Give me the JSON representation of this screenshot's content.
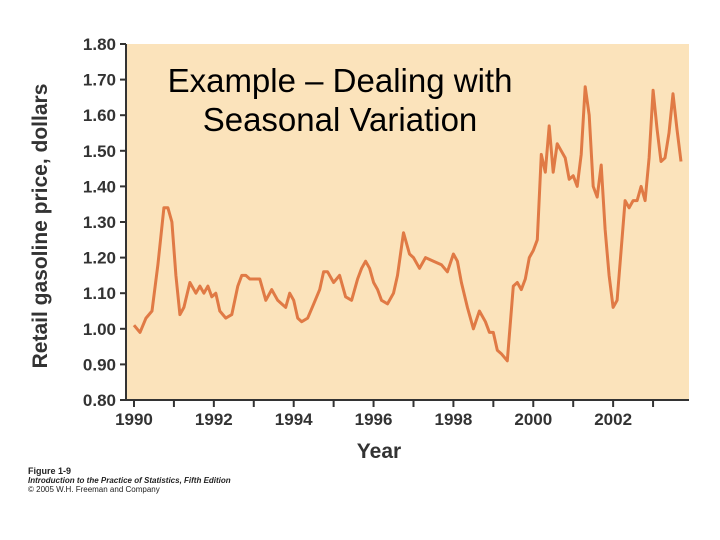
{
  "slide": {
    "title_line1": "Example – Dealing with",
    "title_line2": "Seasonal Variation"
  },
  "caption": {
    "figure": "Figure 1-9",
    "book": "Introduction to the Practice of Statistics, Fifth Edition",
    "copyright": "© 2005 W.H. Freeman and Company"
  },
  "colors": {
    "plot_background": "#fbe3bb",
    "line": "#e07a45",
    "axis": "#333333"
  },
  "chart_data": {
    "type": "line",
    "title": "",
    "xlabel": "Year",
    "ylabel": "Retail gasoline price, dollars",
    "xlim": [
      1989.8,
      2003.9
    ],
    "ylim": [
      0.8,
      1.8
    ],
    "x_ticks": [
      1990,
      1992,
      1994,
      1996,
      1998,
      2000,
      2002
    ],
    "x_tick_labels": [
      "1990",
      "1992",
      "1994",
      "1996",
      "1998",
      "2000",
      "2002"
    ],
    "y_ticks": [
      0.8,
      0.9,
      1.0,
      1.1,
      1.2,
      1.3,
      1.4,
      1.5,
      1.6,
      1.7,
      1.8
    ],
    "y_tick_labels": [
      "0.80",
      "0.90",
      "1.00",
      "1.10",
      "1.20",
      "1.30",
      "1.40",
      "1.50",
      "1.60",
      "1.70",
      "1.80"
    ],
    "grid": false,
    "series": [
      {
        "x": [
          1990.0,
          1990.15,
          1990.3,
          1990.45,
          1990.6,
          1990.75,
          1990.85,
          1990.95,
          1991.05,
          1991.15,
          1991.25,
          1991.4,
          1991.55,
          1991.65,
          1991.75,
          1991.85,
          1991.95,
          1992.05,
          1992.15,
          1992.3,
          1992.45,
          1992.6,
          1992.7,
          1992.8,
          1992.9,
          1993.0,
          1993.15,
          1993.3,
          1993.45,
          1993.6,
          1993.7,
          1993.8,
          1993.9,
          1994.0,
          1994.1,
          1994.2,
          1994.35,
          1994.5,
          1994.65,
          1994.75,
          1994.85,
          1995.0,
          1995.15,
          1995.3,
          1995.45,
          1995.6,
          1995.7,
          1995.8,
          1995.9,
          1996.0,
          1996.1,
          1996.2,
          1996.35,
          1996.5,
          1996.6,
          1996.75,
          1996.9,
          1997.0,
          1997.15,
          1997.3,
          1997.5,
          1997.7,
          1997.85,
          1998.0,
          1998.1,
          1998.2,
          1998.35,
          1998.5,
          1998.65,
          1998.8,
          1998.9,
          1999.0,
          1999.1,
          1999.2,
          1999.35,
          1999.5,
          1999.6,
          1999.7,
          1999.8,
          1999.9,
          2000.0,
          2000.1,
          2000.2,
          2000.3,
          2000.4,
          2000.5,
          2000.6,
          2000.7,
          2000.8,
          2000.9,
          2001.0,
          2001.1,
          2001.2,
          2001.3,
          2001.4,
          2001.5,
          2001.6,
          2001.7,
          2001.8,
          2001.9,
          2002.0,
          2002.1,
          2002.2,
          2002.3,
          2002.4,
          2002.5,
          2002.6,
          2002.7,
          2002.8,
          2002.9,
          2003.0,
          2003.1,
          2003.2,
          2003.3,
          2003.4,
          2003.5,
          2003.6,
          2003.7
        ],
        "values": [
          1.01,
          0.99,
          1.03,
          1.05,
          1.18,
          1.34,
          1.34,
          1.3,
          1.15,
          1.04,
          1.06,
          1.13,
          1.1,
          1.12,
          1.1,
          1.12,
          1.09,
          1.1,
          1.05,
          1.03,
          1.04,
          1.12,
          1.15,
          1.15,
          1.14,
          1.14,
          1.14,
          1.08,
          1.11,
          1.08,
          1.07,
          1.06,
          1.1,
          1.08,
          1.03,
          1.02,
          1.03,
          1.07,
          1.11,
          1.16,
          1.16,
          1.13,
          1.15,
          1.09,
          1.08,
          1.14,
          1.17,
          1.19,
          1.17,
          1.13,
          1.11,
          1.08,
          1.07,
          1.1,
          1.15,
          1.27,
          1.21,
          1.2,
          1.17,
          1.2,
          1.19,
          1.18,
          1.16,
          1.21,
          1.19,
          1.13,
          1.06,
          1.0,
          1.05,
          1.02,
          0.99,
          0.99,
          0.94,
          0.93,
          0.91,
          1.12,
          1.13,
          1.11,
          1.14,
          1.2,
          1.22,
          1.25,
          1.49,
          1.44,
          1.57,
          1.44,
          1.52,
          1.5,
          1.48,
          1.42,
          1.43,
          1.4,
          1.49,
          1.68,
          1.6,
          1.4,
          1.37,
          1.46,
          1.28,
          1.15,
          1.06,
          1.08,
          1.22,
          1.36,
          1.34,
          1.36,
          1.36,
          1.4,
          1.36,
          1.48,
          1.67,
          1.56,
          1.47,
          1.48,
          1.55,
          1.66,
          1.56,
          1.47
        ]
      }
    ]
  }
}
